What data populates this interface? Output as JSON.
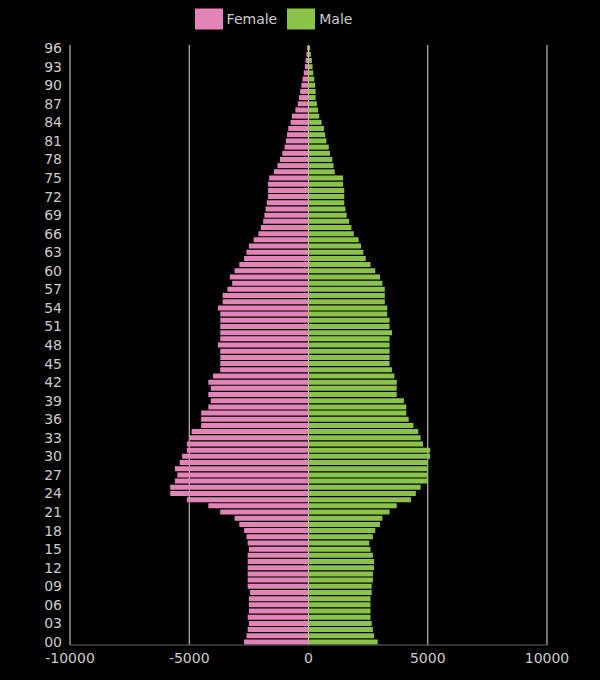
{
  "chart_data": {
    "type": "bar",
    "orientation": "horizontal",
    "stacked": true,
    "grid": true,
    "legend": "top",
    "categories": [
      "00",
      null,
      null,
      "03",
      null,
      null,
      "06",
      null,
      null,
      "09",
      null,
      null,
      "12",
      null,
      null,
      "15",
      null,
      null,
      "18",
      null,
      null,
      "21",
      null,
      null,
      "24",
      null,
      null,
      "27",
      null,
      null,
      "30",
      null,
      null,
      "33",
      null,
      null,
      "36",
      null,
      null,
      "39",
      null,
      null,
      "42",
      null,
      null,
      "45",
      null,
      null,
      "48",
      null,
      null,
      "51",
      null,
      null,
      "54",
      null,
      null,
      "57",
      null,
      null,
      "60",
      null,
      null,
      "63",
      null,
      null,
      "66",
      null,
      null,
      "69",
      null,
      null,
      "72",
      null,
      null,
      "75",
      null,
      null,
      "78",
      null,
      null,
      "81",
      null,
      null,
      "84",
      null,
      null,
      "87",
      null,
      null,
      "90",
      null,
      null,
      "93",
      null,
      null,
      "96"
    ],
    "series": [
      {
        "name": "Female",
        "color": "#e384b8",
        "values": [
          -2700,
          -2600,
          -2550,
          -2500,
          -2550,
          -2500,
          -2500,
          -2500,
          -2450,
          -2550,
          -2550,
          -2550,
          -2550,
          -2550,
          -2550,
          -2500,
          -2550,
          -2600,
          -2700,
          -2900,
          -3100,
          -3700,
          -4200,
          -5100,
          -5800,
          -5800,
          -5600,
          -5500,
          -5600,
          -5400,
          -5300,
          -5100,
          -5100,
          -5000,
          -4900,
          -4500,
          -4500,
          -4500,
          -4200,
          -4100,
          -4200,
          -4100,
          -4200,
          -4000,
          -3700,
          -3700,
          -3700,
          -3700,
          -3800,
          -3700,
          -3700,
          -3700,
          -3700,
          -3700,
          -3800,
          -3600,
          -3600,
          -3400,
          -3200,
          -3300,
          -3100,
          -2900,
          -2700,
          -2600,
          -2500,
          -2300,
          -2100,
          -2000,
          -1900,
          -1850,
          -1800,
          -1750,
          -1700,
          -1700,
          -1700,
          -1650,
          -1450,
          -1300,
          -1200,
          -1100,
          -1000,
          -950,
          -900,
          -850,
          -750,
          -700,
          -550,
          -450,
          -400,
          -350,
          -300,
          -250,
          -200,
          -150,
          -120,
          -90,
          -60
        ]
      },
      {
        "name": "Male",
        "color": "#8bc34a",
        "values": [
          2900,
          2750,
          2700,
          2650,
          2600,
          2600,
          2600,
          2600,
          2650,
          2650,
          2700,
          2700,
          2750,
          2750,
          2700,
          2600,
          2550,
          2700,
          2800,
          3000,
          3100,
          3400,
          3700,
          4300,
          4500,
          4700,
          5000,
          5000,
          5000,
          5000,
          5100,
          5100,
          4800,
          4700,
          4600,
          4400,
          4200,
          4100,
          4100,
          4000,
          3700,
          3700,
          3700,
          3600,
          3500,
          3400,
          3400,
          3400,
          3400,
          3400,
          3500,
          3400,
          3400,
          3300,
          3300,
          3200,
          3200,
          3200,
          3100,
          3000,
          2800,
          2600,
          2400,
          2300,
          2200,
          2100,
          1900,
          1800,
          1700,
          1600,
          1550,
          1500,
          1500,
          1500,
          1450,
          1450,
          1100,
          1050,
          1000,
          900,
          850,
          750,
          700,
          650,
          550,
          450,
          400,
          350,
          300,
          300,
          280,
          240,
          200,
          170,
          140,
          100,
          70
        ]
      }
    ],
    "xlim": [
      -10000,
      10000
    ],
    "xticks": [
      -10000,
      -5000,
      0,
      5000,
      10000
    ]
  }
}
